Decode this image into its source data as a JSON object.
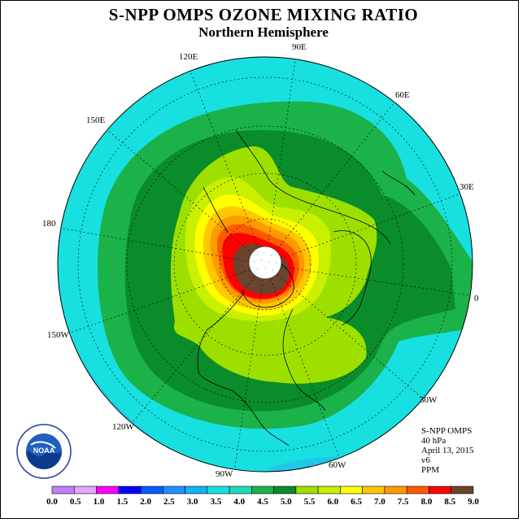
{
  "header": {
    "title": "S-NPP OMPS OZONE MIXING RATIO",
    "subtitle": "Northern Hemisphere"
  },
  "map": {
    "projection": "north-polar-stereographic",
    "longitude_labels": [
      "0",
      "30E",
      "60E",
      "90E",
      "120E",
      "150E",
      "180",
      "150W",
      "120W",
      "90W",
      "60W",
      "30W"
    ]
  },
  "info": {
    "instrument": "S-NPP OMPS",
    "level": "40 hPa",
    "date": "April 13, 2015",
    "version": "v6",
    "units": "PPM"
  },
  "logo": {
    "text": "NOAA",
    "icon": "noaa-logo-icon"
  },
  "colorbar": {
    "labels": [
      "0.0",
      "0.5",
      "1.0",
      "1.5",
      "2.0",
      "2.5",
      "3.0",
      "3.5",
      "4.0",
      "4.5",
      "5.0",
      "5.5",
      "6.0",
      "6.5",
      "7.0",
      "7.5",
      "8.0",
      "8.5",
      "9.0"
    ],
    "colors": [
      "#bf7fff",
      "#e0a8ff",
      "#ff00ff",
      "#0000ff",
      "#0a5cff",
      "#1e90ff",
      "#12b4f4",
      "#18e0e0",
      "#20d9b8",
      "#1bb24a",
      "#0a8c2a",
      "#9de000",
      "#c8f000",
      "#ffff00",
      "#ffc800",
      "#ff9a00",
      "#ff5a00",
      "#ff0000",
      "#6b4430"
    ]
  }
}
